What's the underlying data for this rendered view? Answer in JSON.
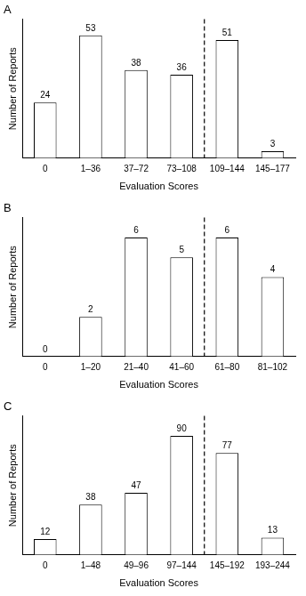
{
  "chart_data": [
    {
      "type": "bar",
      "title": "A",
      "xlabel": "Evaluation Scores",
      "ylabel": "Number of Reports",
      "categories": [
        "0",
        "1–36",
        "37–72",
        "73–108",
        "109–144",
        "145–177"
      ],
      "values": [
        24,
        53,
        38,
        36,
        51,
        3
      ],
      "color": "#ffffff",
      "ylim": [
        0,
        60
      ],
      "yticks": [],
      "grid": false,
      "data_labels": true,
      "tick_labels": "x"
    },
    {
      "type": "bar",
      "title": "B",
      "xlabel": "Evaluation Scores",
      "ylabel": "Number of Reports",
      "categories": [
        "0",
        "1–20",
        "21–40",
        "41–60",
        "61–80",
        "81–102"
      ],
      "values": [
        0,
        2,
        6,
        5,
        6,
        4
      ],
      "color": "#ffffff",
      "ylim": [
        0,
        7
      ],
      "yticks": [],
      "grid": false,
      "data_labels": true,
      "tick_labels": "x"
    },
    {
      "type": "bar",
      "title": "C",
      "xlabel": "Evaluation Scores",
      "ylabel": "Number of Reports",
      "categories": [
        "0",
        "1–48",
        "49–96",
        "97–144",
        "145–192",
        "193–244"
      ],
      "values": [
        12,
        38,
        47,
        90,
        77,
        13
      ],
      "color": "#ffffff",
      "ylim": [
        0,
        105
      ],
      "yticks": [],
      "grid": false,
      "data_labels": true,
      "tick_labels": "x"
    }
  ]
}
